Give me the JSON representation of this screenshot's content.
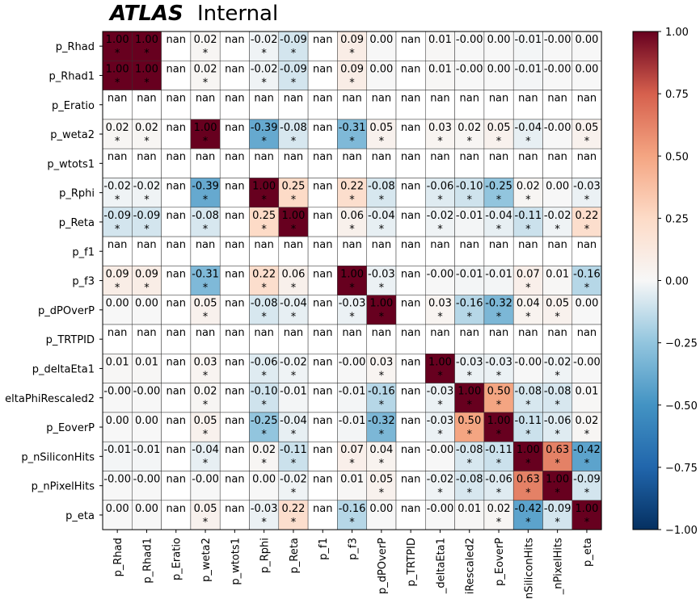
{
  "header": {
    "experiment": "ATLAS",
    "label": "Internal"
  },
  "chart_data": {
    "type": "heatmap",
    "xlabels_visible": [
      "p_Rhad",
      "p_Rhad1",
      "p_Eratio",
      "p_weta2",
      "p_wtots1",
      "p_Rphi",
      "p_Reta",
      "p_f1",
      "p_f3",
      "p_dPOverP",
      "p_TRTPID",
      "_deltaEta1",
      "iRescaled2",
      "p_EoverP",
      "nSiliconHits",
      "_nPixelHits",
      "p_eta"
    ],
    "ylabels_visible": [
      "p_Rhad",
      "p_Rhad1",
      "p_Eratio",
      "p_weta2",
      "p_wtots1",
      "p_Rphi",
      "p_Reta",
      "p_f1",
      "p_f3",
      "p_dPOverP",
      "p_TRTPID",
      "p_deltaEta1",
      "eltaPhiRescaled2",
      "p_EoverP",
      "p_nSiliconHits",
      "p_nPixelHits",
      "p_eta"
    ],
    "values": [
      [
        "1.00",
        "1.00",
        "nan",
        "0.02",
        "nan",
        "-0.02",
        "-0.09",
        "nan",
        "0.09",
        "0.00",
        "nan",
        "0.01",
        "-0.00",
        "0.00",
        "-0.01",
        "-0.00",
        "0.00"
      ],
      [
        "1.00",
        "1.00",
        "nan",
        "0.02",
        "nan",
        "-0.02",
        "-0.09",
        "nan",
        "0.09",
        "0.00",
        "nan",
        "0.01",
        "-0.00",
        "0.00",
        "-0.01",
        "-0.00",
        "0.00"
      ],
      [
        "nan",
        "nan",
        "nan",
        "nan",
        "nan",
        "nan",
        "nan",
        "nan",
        "nan",
        "nan",
        "nan",
        "nan",
        "nan",
        "nan",
        "nan",
        "nan",
        "nan"
      ],
      [
        "0.02",
        "0.02",
        "nan",
        "1.00",
        "nan",
        "-0.39",
        "-0.08",
        "nan",
        "-0.31",
        "0.05",
        "nan",
        "0.03",
        "0.02",
        "0.05",
        "-0.04",
        "-0.00",
        "0.05"
      ],
      [
        "nan",
        "nan",
        "nan",
        "nan",
        "nan",
        "nan",
        "nan",
        "nan",
        "nan",
        "nan",
        "nan",
        "nan",
        "nan",
        "nan",
        "nan",
        "nan",
        "nan"
      ],
      [
        "-0.02",
        "-0.02",
        "nan",
        "-0.39",
        "nan",
        "1.00",
        "0.25",
        "nan",
        "0.22",
        "-0.08",
        "nan",
        "-0.06",
        "-0.10",
        "-0.25",
        "0.02",
        "0.00",
        "-0.03"
      ],
      [
        "-0.09",
        "-0.09",
        "nan",
        "-0.08",
        "nan",
        "0.25",
        "1.00",
        "nan",
        "0.06",
        "-0.04",
        "nan",
        "-0.02",
        "-0.01",
        "-0.04",
        "-0.11",
        "-0.02",
        "0.22"
      ],
      [
        "nan",
        "nan",
        "nan",
        "nan",
        "nan",
        "nan",
        "nan",
        "nan",
        "nan",
        "nan",
        "nan",
        "nan",
        "nan",
        "nan",
        "nan",
        "nan",
        "nan"
      ],
      [
        "0.09",
        "0.09",
        "nan",
        "-0.31",
        "nan",
        "0.22",
        "0.06",
        "nan",
        "1.00",
        "-0.03",
        "nan",
        "-0.00",
        "-0.01",
        "-0.01",
        "0.07",
        "0.01",
        "-0.16"
      ],
      [
        "0.00",
        "0.00",
        "nan",
        "0.05",
        "nan",
        "-0.08",
        "-0.04",
        "nan",
        "-0.03",
        "1.00",
        "nan",
        "0.03",
        "-0.16",
        "-0.32",
        "0.04",
        "0.05",
        "0.00"
      ],
      [
        "nan",
        "nan",
        "nan",
        "nan",
        "nan",
        "nan",
        "nan",
        "nan",
        "nan",
        "nan",
        "nan",
        "nan",
        "nan",
        "nan",
        "nan",
        "nan",
        "nan"
      ],
      [
        "0.01",
        "0.01",
        "nan",
        "0.03",
        "nan",
        "-0.06",
        "-0.02",
        "nan",
        "-0.00",
        "0.03",
        "nan",
        "1.00",
        "-0.03",
        "-0.03",
        "-0.00",
        "-0.02",
        "-0.00"
      ],
      [
        "-0.00",
        "-0.00",
        "nan",
        "0.02",
        "nan",
        "-0.10",
        "-0.01",
        "nan",
        "-0.01",
        "-0.16",
        "nan",
        "-0.03",
        "1.00",
        "0.50",
        "-0.08",
        "-0.08",
        "0.01"
      ],
      [
        "0.00",
        "0.00",
        "nan",
        "0.05",
        "nan",
        "-0.25",
        "-0.04",
        "nan",
        "-0.01",
        "-0.32",
        "nan",
        "-0.03",
        "0.50",
        "1.00",
        "-0.11",
        "-0.06",
        "0.02"
      ],
      [
        "-0.01",
        "-0.01",
        "nan",
        "-0.04",
        "nan",
        "0.02",
        "-0.11",
        "nan",
        "0.07",
        "0.04",
        "nan",
        "-0.00",
        "-0.08",
        "-0.11",
        "1.00",
        "0.63",
        "-0.42"
      ],
      [
        "-0.00",
        "-0.00",
        "nan",
        "-0.00",
        "nan",
        "0.00",
        "-0.02",
        "nan",
        "0.01",
        "0.05",
        "nan",
        "-0.02",
        "-0.08",
        "-0.06",
        "0.63",
        "1.00",
        "-0.09"
      ],
      [
        "0.00",
        "0.00",
        "nan",
        "0.05",
        "nan",
        "-0.03",
        "0.22",
        "nan",
        "-0.16",
        "0.00",
        "nan",
        "-0.00",
        "0.01",
        "0.02",
        "-0.42",
        "-0.09",
        "1.00"
      ]
    ],
    "significant": [
      [
        1,
        1,
        0,
        1,
        0,
        1,
        1,
        0,
        1,
        0,
        0,
        0,
        0,
        0,
        0,
        0,
        0
      ],
      [
        1,
        1,
        0,
        1,
        0,
        1,
        1,
        0,
        1,
        0,
        0,
        0,
        0,
        0,
        0,
        0,
        0
      ],
      [
        0,
        0,
        0,
        0,
        0,
        0,
        0,
        0,
        0,
        0,
        0,
        0,
        0,
        0,
        0,
        0,
        0
      ],
      [
        1,
        1,
        0,
        1,
        0,
        1,
        1,
        0,
        1,
        1,
        0,
        1,
        1,
        1,
        1,
        0,
        1
      ],
      [
        0,
        0,
        0,
        0,
        0,
        0,
        0,
        0,
        0,
        0,
        0,
        0,
        0,
        0,
        0,
        0,
        0
      ],
      [
        1,
        1,
        0,
        1,
        0,
        1,
        1,
        0,
        1,
        1,
        0,
        1,
        1,
        1,
        1,
        0,
        1
      ],
      [
        1,
        1,
        0,
        1,
        0,
        1,
        1,
        0,
        1,
        1,
        0,
        1,
        0,
        1,
        1,
        1,
        1
      ],
      [
        0,
        0,
        0,
        0,
        0,
        0,
        0,
        0,
        0,
        0,
        0,
        0,
        0,
        0,
        0,
        0,
        0
      ],
      [
        1,
        1,
        0,
        1,
        0,
        1,
        1,
        0,
        1,
        1,
        0,
        0,
        0,
        0,
        1,
        0,
        1
      ],
      [
        0,
        0,
        0,
        1,
        0,
        1,
        1,
        0,
        1,
        1,
        0,
        1,
        1,
        1,
        1,
        1,
        0
      ],
      [
        0,
        0,
        0,
        0,
        0,
        0,
        0,
        0,
        0,
        0,
        0,
        0,
        0,
        0,
        0,
        0,
        0
      ],
      [
        0,
        0,
        0,
        1,
        0,
        1,
        1,
        0,
        0,
        1,
        0,
        1,
        1,
        1,
        0,
        1,
        0
      ],
      [
        0,
        0,
        0,
        1,
        0,
        1,
        0,
        0,
        0,
        1,
        0,
        1,
        1,
        1,
        1,
        1,
        0
      ],
      [
        0,
        0,
        0,
        1,
        0,
        1,
        1,
        0,
        0,
        1,
        0,
        1,
        1,
        1,
        1,
        1,
        1
      ],
      [
        0,
        0,
        0,
        1,
        0,
        1,
        1,
        0,
        1,
        1,
        0,
        0,
        1,
        1,
        1,
        1,
        1
      ],
      [
        0,
        0,
        0,
        0,
        0,
        0,
        1,
        0,
        0,
        1,
        0,
        1,
        1,
        1,
        1,
        1,
        1
      ],
      [
        0,
        0,
        0,
        1,
        0,
        1,
        1,
        0,
        1,
        0,
        0,
        0,
        0,
        1,
        1,
        1,
        1
      ]
    ],
    "significance_marker": "*",
    "nan_text": "nan",
    "colorbar": {
      "vmin": -1.0,
      "vmax": 1.0,
      "colormap": "RdBu_r",
      "ticks": [
        "1.00",
        "0.75",
        "0.50",
        "0.25",
        "0.00",
        "−0.25",
        "−0.50",
        "−0.75",
        "−1.00"
      ],
      "tick_values": [
        1.0,
        0.75,
        0.5,
        0.25,
        0.0,
        -0.25,
        -0.5,
        -0.75,
        -1.0
      ]
    },
    "grid": true
  }
}
